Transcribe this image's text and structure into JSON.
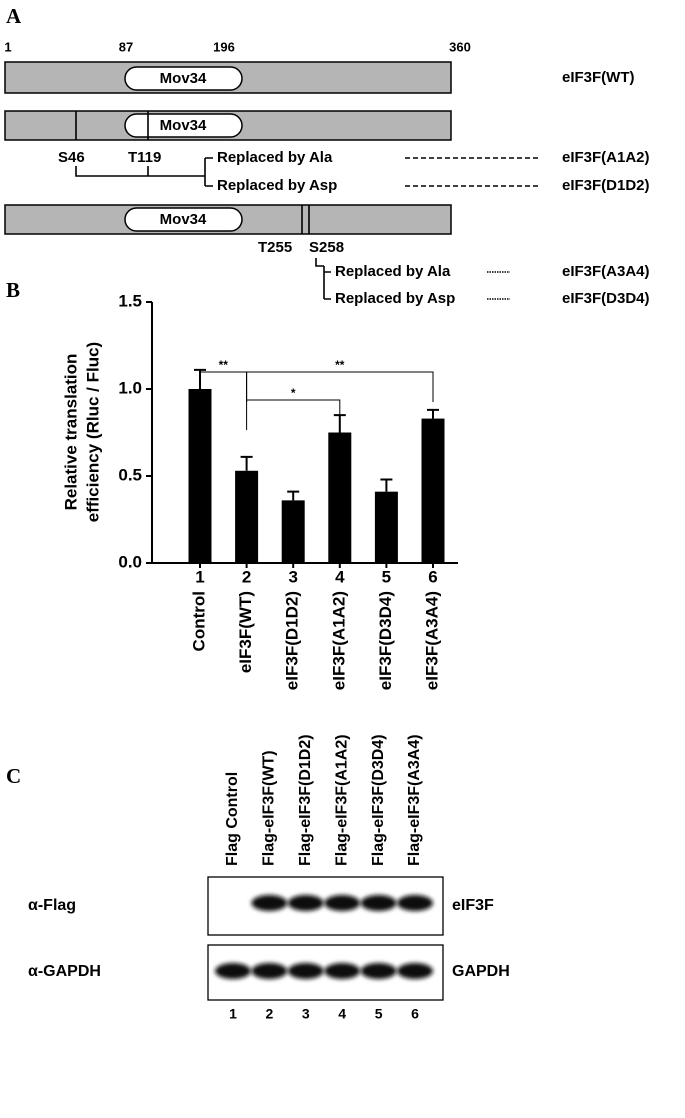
{
  "panel_a": {
    "label": "A",
    "scale_ticks": [
      1,
      87,
      196,
      360
    ],
    "domain": "Mov34",
    "constructs": [
      {
        "name": "eIF3F(WT)"
      },
      {
        "sites": [
          "S46",
          "T119"
        ],
        "ala": "Replaced by Ala",
        "asp": "Replaced by Asp",
        "ala_name": "eIF3F(A1A2)",
        "asp_name": "eIF3F(D1D2)"
      },
      {
        "sites": [
          "T255",
          "S258"
        ],
        "ala": "Replaced by Ala",
        "asp": "Replaced by Asp",
        "ala_name": "eIF3F(A3A4)",
        "asp_name": "eIF3F(D3D4)"
      }
    ]
  },
  "chart_data": {
    "type": "bar",
    "panel_label": "B",
    "ylabel": [
      "Relative translation",
      "efficiency (Rluc / Fluc)"
    ],
    "lane_numbers": [
      1,
      2,
      3,
      4,
      5,
      6
    ],
    "categories": [
      "Control",
      "eIF3F(WT)",
      "eIF3F(D1D2)",
      "eIF3F(A1A2)",
      "eIF3F(D3D4)",
      "eIF3F(A3A4)"
    ],
    "values": [
      1.0,
      0.53,
      0.36,
      0.75,
      0.41,
      0.83
    ],
    "errors": [
      0.11,
      0.08,
      0.05,
      0.1,
      0.07,
      0.05
    ],
    "color": "#000000",
    "ylim": [
      0,
      1.5
    ],
    "yticks": [
      {
        "value": 0,
        "label": "0.0"
      },
      {
        "value": 0.5,
        "label": "0.5"
      },
      {
        "value": 1,
        "label": "1.0"
      },
      {
        "value": 1.5,
        "label": "1.5"
      }
    ],
    "significance": [
      {
        "between": [
          "Control",
          "eIF3F(WT)"
        ],
        "label": "**"
      },
      {
        "between": [
          "eIF3F(WT)",
          "eIF3F(A1A2)"
        ],
        "label": "*"
      },
      {
        "between": [
          "eIF3F(WT)",
          "eIF3F(A3A4)"
        ],
        "label": "**"
      }
    ]
  },
  "panel_c": {
    "label": "C",
    "lanes": [
      "Flag Control",
      "Flag-eIF3F(WT)",
      "Flag-eIF3F(D1D2)",
      "Flag-eIF3F(A1A2)",
      "Flag-eIF3F(D3D4)",
      "Flag-eIF3F(A3A4)"
    ],
    "rows": [
      {
        "antibody": "α-Flag",
        "protein": "eIF3F"
      },
      {
        "antibody": "α-GAPDH",
        "protein": "GAPDH"
      }
    ],
    "lane_numbers": [
      1,
      2,
      3,
      4,
      5,
      6
    ]
  }
}
